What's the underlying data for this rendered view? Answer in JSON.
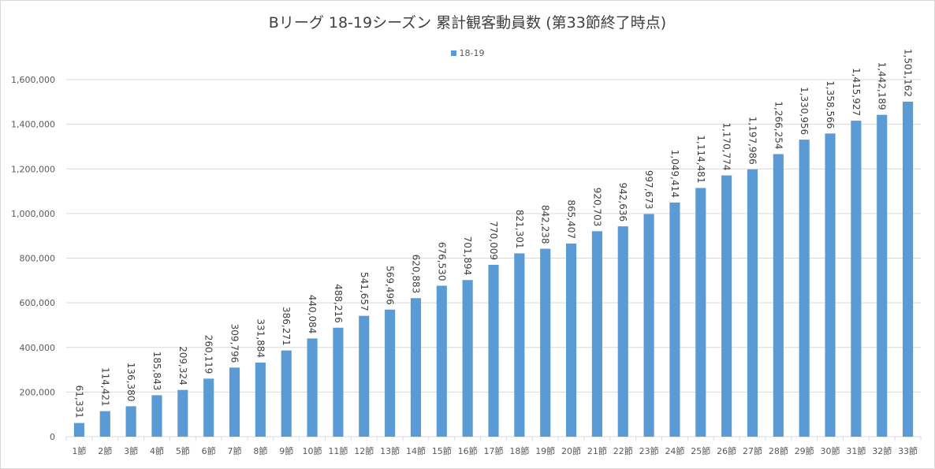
{
  "chart_data": {
    "type": "bar",
    "title": "Bリーグ 18-19シーズン 累計観客動員数 (第33節終了時点)",
    "xlabel": "",
    "ylabel": "",
    "ylim": [
      0,
      1600000
    ],
    "yticks": [
      0,
      200000,
      400000,
      600000,
      800000,
      1000000,
      1200000,
      1400000,
      1600000
    ],
    "ytick_labels": [
      "0",
      "200,000",
      "400,000",
      "600,000",
      "800,000",
      "1,000,000",
      "1,200,000",
      "1,400,000",
      "1,600,000"
    ],
    "grid": true,
    "legend_position": "top-center",
    "categories": [
      "1節",
      "2節",
      "3節",
      "4節",
      "5節",
      "6節",
      "7節",
      "8節",
      "9節",
      "10節",
      "11節",
      "12節",
      "13節",
      "14節",
      "15節",
      "16節",
      "17節",
      "18節",
      "19節",
      "20節",
      "21節",
      "22節",
      "23節",
      "24節",
      "25節",
      "26節",
      "27節",
      "28節",
      "29節",
      "30節",
      "31節",
      "32節",
      "33節"
    ],
    "series": [
      {
        "name": "18-19",
        "color": "#5B9BD5",
        "values": [
          61331,
          114421,
          136380,
          185843,
          209324,
          260119,
          309796,
          331884,
          386271,
          440084,
          488216,
          541657,
          569496,
          620883,
          676530,
          701894,
          770009,
          821301,
          842238,
          865407,
          920703,
          942636,
          997673,
          1049414,
          1114481,
          1170774,
          1197986,
          1266254,
          1330956,
          1358566,
          1415927,
          1442189,
          1501162
        ],
        "labels": [
          "61,331",
          "114,421",
          "136,380",
          "185,843",
          "209,324",
          "260,119",
          "309,796",
          "331,884",
          "386,271",
          "440,084",
          "488,216",
          "541,657",
          "569,496",
          "620,883",
          "676,530",
          "701,894",
          "770,009",
          "821,301",
          "842,238",
          "865,407",
          "920,703",
          "942,636",
          "997,673",
          "1,049,414",
          "1,114,481",
          "1,170,774",
          "1,197,986",
          "1,266,254",
          "1,330,956",
          "1,358,566",
          "1,415,927",
          "1,442,189",
          "1,501,162"
        ]
      }
    ]
  }
}
